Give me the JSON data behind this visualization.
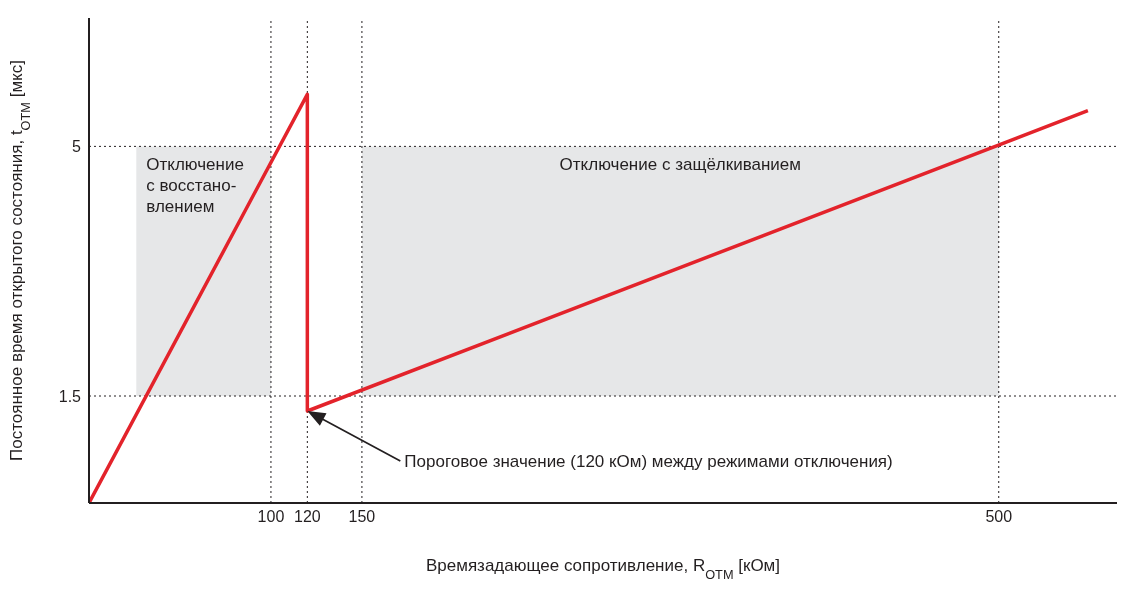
{
  "chart_data": {
    "type": "line",
    "xlabel": "Времязадающее сопротивление, R$_{ОТМ}$ [кОм]",
    "ylabel": "Постоянное время открытого состояния, t$_{ОТМ}$ [мкс]",
    "series": [
      {
        "color": "#e3232b",
        "x": [
          0,
          120,
          120,
          549
        ],
        "values": [
          0,
          5.73,
          1.29,
          5.5
        ]
      }
    ],
    "xlim": [
      0,
      565
    ],
    "ylim": [
      0,
      6.8
    ],
    "xticks": [
      100,
      120,
      150,
      500
    ],
    "yticks": [
      1.5,
      5
    ],
    "grid": false,
    "marker": "none",
    "line_style": "solid",
    "ref_lines": [
      {
        "axis": "x",
        "value": 100,
        "line_style": "dotted"
      },
      {
        "axis": "x",
        "value": 120,
        "line_style": "dotted"
      },
      {
        "axis": "x",
        "value": 150,
        "line_style": "dotted"
      },
      {
        "axis": "x",
        "value": 500,
        "line_style": "dotted"
      },
      {
        "axis": "y",
        "value": 1.5,
        "line_style": "dotted"
      },
      {
        "axis": "y",
        "value": 5,
        "line_style": "dotted"
      }
    ],
    "bands": [
      {
        "axis": "x",
        "from": 26,
        "to": 100,
        "label": "Отключение\nс восстано-\nвлением",
        "color": "#e6e7e8"
      },
      {
        "axis": "x",
        "from": 150,
        "to": 500,
        "label": "Отключение с защёлкиванием",
        "color": "#e6e7e8"
      }
    ],
    "annotations": [
      "Пороговое значение (120 кОм) между режимами отключения)"
    ]
  }
}
